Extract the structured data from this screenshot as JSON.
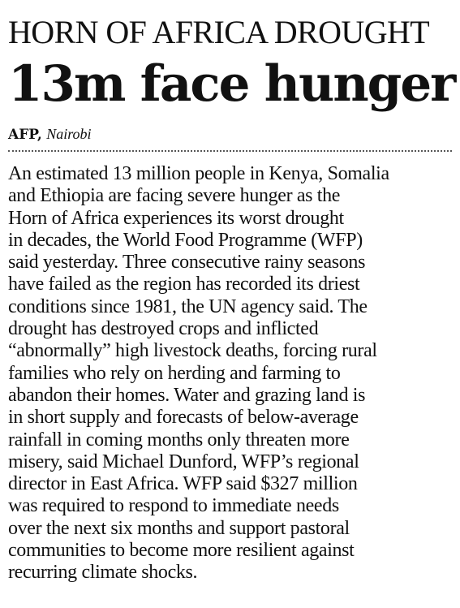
{
  "article": {
    "kicker": "HORN OF AFRICA DROUGHT",
    "headline": "13m face hunger",
    "byline": {
      "agency": "AFP,",
      "location": "Nairobi"
    },
    "body_lines": [
      "An estimated 13 million people in Kenya, Somalia",
      "and Ethiopia are facing severe hunger as the",
      "Horn of Africa experiences its worst drought",
      "in decades, the World Food Programme (WFP)",
      "said yesterday. Three consecutive rainy seasons",
      "have failed as the region has recorded its driest",
      "conditions since 1981, the UN agency said. The",
      "drought has destroyed crops and inflicted",
      "“abnormally” high livestock deaths, forcing rural",
      "families who rely on herding and farming to",
      "abandon their homes. Water and grazing land is",
      "in short supply and forecasts of below-average",
      "rainfall in coming months only threaten more",
      "misery, said Michael Dunford, WFP’s regional",
      "director in East Africa. WFP said $327 million",
      "was required to respond to immediate needs",
      "over the next six months and support pastoral",
      "communities to become more resilient against",
      "recurring climate shocks."
    ]
  }
}
